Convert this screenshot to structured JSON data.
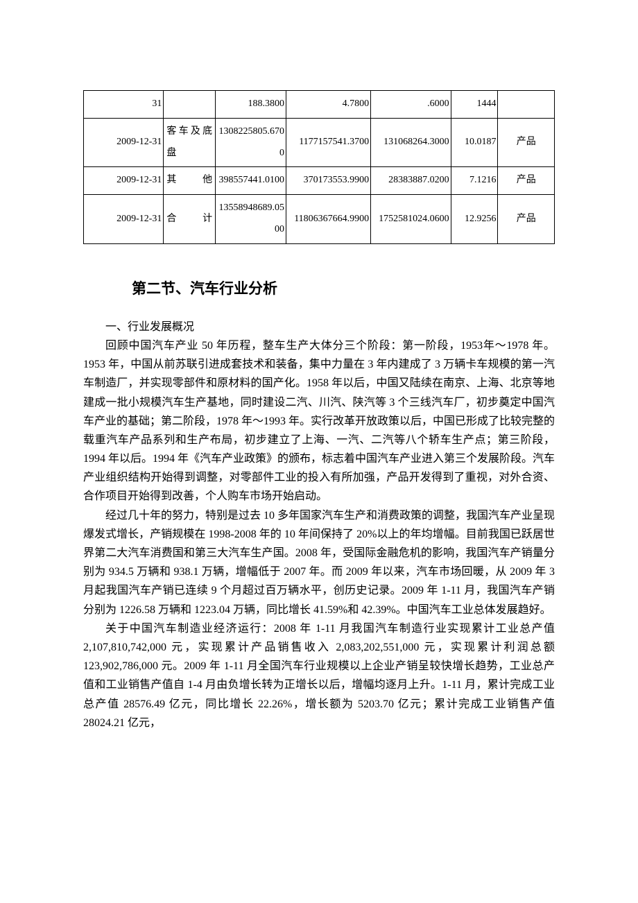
{
  "table": {
    "rows": [
      {
        "date": "31",
        "type": "",
        "c1": "188.3800",
        "c2": "4.7800",
        "c3": ".6000",
        "c4": "1444",
        "tag": ""
      },
      {
        "date": "2009-12-31",
        "type": "客车及底盘",
        "c1": "1308225805.6700",
        "c2": "1177157541.3700",
        "c3": "131068264.3000",
        "c4": "10.0187",
        "tag": "产品"
      },
      {
        "date": "2009-12-31",
        "type": "其他",
        "c1": "398557441.0100",
        "c2": "370173553.9900",
        "c3": "28383887.0200",
        "c4": "7.1216",
        "tag": "产品"
      },
      {
        "date": "2009-12-31",
        "type": "合计",
        "c1": "13558948689.0500",
        "c2": "11806367664.9900",
        "c3": "1752581024.0600",
        "c4": "12.9256",
        "tag": "产品"
      }
    ],
    "column_widths_pct": [
      17,
      11,
      15,
      18,
      17,
      10,
      12
    ],
    "border_color": "#000000",
    "font_size_pt": 10.5
  },
  "section": {
    "heading": "第二节、汽车行业分析",
    "heading_font_size_pt": 16,
    "heading_font_family": "SimHei",
    "body_font_size_pt": 12,
    "body_font_family": "SimSun",
    "paragraphs": [
      "一、行业发展概况",
      "回顾中国汽车产业 50 年历程，整车生产大体分三个阶段：第一阶段，1953年～1978 年。1953 年，中国从前苏联引进成套技术和装备，集中力量在 3 年内建成了 3 万辆卡车规模的第一汽车制造厂，并实现零部件和原材料的国产化。1958 年以后，中国又陆续在南京、上海、北京等地建成一批小规模汽车生产基地，同时建设二汽、川汽、陕汽等 3 个三线汽车厂，初步奠定中国汽车产业的基础；第二阶段，1978 年～1993 年。实行改革开放政策以后，中国已形成了比较完整的载重汽车产品系列和生产布局，初步建立了上海、一汽、二汽等八个轿车生产点；第三阶段，1994 年以后。1994 年《汽车产业政策》的颁布，标志着中国汽车产业进入第三个发展阶段。汽车产业组织结构开始得到调整，对零部件工业的投入有所加强，产品开发得到了重视，对外合资、合作项目开始得到改善，个人购车市场开始启动。",
      "经过几十年的努力，特别是过去 10 多年国家汽车生产和消费政策的调整，我国汽车产业呈现爆发式增长，产销规模在 1998-2008 年的 10 年间保持了 20%以上的年均增幅。目前我国已跃居世界第二大汽车消费国和第三大汽车生产国。2008 年，受国际金融危机的影响，我国汽车产销量分别为 934.5 万辆和 938.1 万辆，增幅低于 2007 年。而 2009 年以来，汽车市场回暖，从 2009 年 3 月起我国汽车产销已连续 9 个月超过百万辆水平，创历史记录。2009 年 1-11 月，我国汽车产销分别为 1226.58 万辆和 1223.04 万辆，同比增长 41.59%和 42.39%。中国汽车工业总体发展趋好。",
      "关于中国汽车制造业经济运行：2008 年 1-11 月我国汽车制造行业实现累计工业总产值 2,107,810,742,000 元，实现累计产品销售收入 2,083,202,551,000 元，实现累计利润总额 123,902,786,000 元。2009 年 1-11 月全国汽车行业规模以上企业产销呈较快增长趋势，工业总产值和工业销售产值自 1-4 月由负增长转为正增长以后，增幅均逐月上升。1-11 月，累计完成工业总产值 28576.49 亿元，同比增长 22.26%，增长额为 5203.70 亿元；累计完成工业销售产值 28024.21 亿元，"
    ]
  },
  "colors": {
    "text": "#000000",
    "background": "#ffffff"
  }
}
